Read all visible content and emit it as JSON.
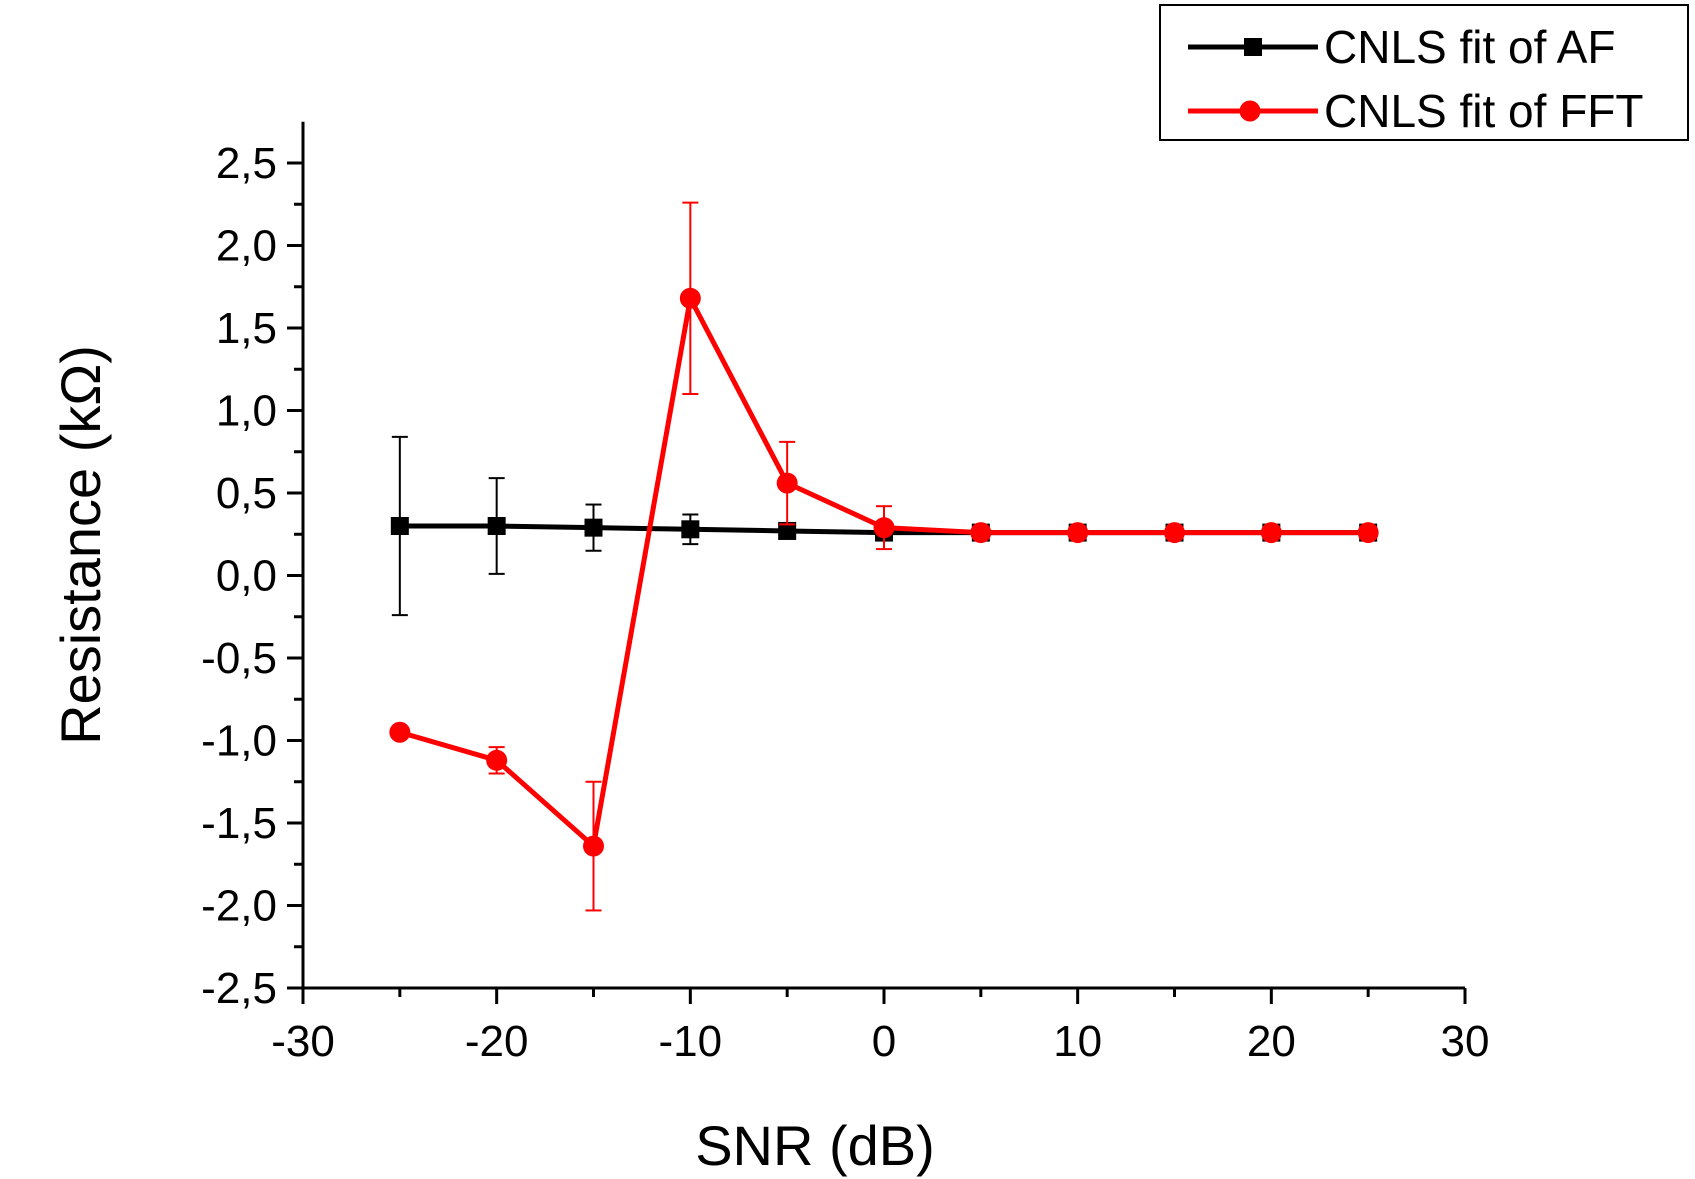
{
  "chart_data": {
    "type": "line",
    "xlabel": "SNR (dB)",
    "ylabel": "Resistance (kΩ)",
    "xlim": [
      -30,
      30
    ],
    "ylim": [
      -2.5,
      2.75
    ],
    "xticks": [
      -30,
      -20,
      -10,
      0,
      10,
      20,
      30
    ],
    "xtick_labels": [
      "-30",
      "-20",
      "-10",
      "0",
      "10",
      "20",
      "30"
    ],
    "xminor": [
      -25,
      -15,
      -5,
      5,
      15,
      25
    ],
    "yticks": [
      -2.5,
      -2.0,
      -1.5,
      -1.0,
      -0.5,
      0.0,
      0.5,
      1.0,
      1.5,
      2.0,
      2.5
    ],
    "ytick_labels": [
      "-2,5",
      "-2,0",
      "-1,5",
      "-1,0",
      "-0,5",
      "0,0",
      "0,5",
      "1,0",
      "1,5",
      "2,0",
      "2,5"
    ],
    "yminor": [
      -2.25,
      -1.75,
      -1.25,
      -0.75,
      -0.25,
      0.25,
      0.75,
      1.25,
      1.75,
      2.25
    ],
    "legend_position": "top-right",
    "series": [
      {
        "name": "CNLS fit of AF",
        "color": "#000000",
        "marker": "square",
        "x": [
          -25,
          -20,
          -15,
          -10,
          -5,
          0,
          5,
          10,
          15,
          20,
          25
        ],
        "y": [
          0.3,
          0.3,
          0.29,
          0.28,
          0.27,
          0.26,
          0.26,
          0.26,
          0.26,
          0.26,
          0.26
        ],
        "err": [
          0.54,
          0.29,
          0.14,
          0.09,
          0.02,
          0.02,
          0.01,
          0.01,
          0.01,
          0.01,
          0.01
        ]
      },
      {
        "name": "CNLS fit of FFT",
        "color": "#ff0000",
        "marker": "circle",
        "x": [
          -25,
          -20,
          -15,
          -10,
          -5,
          0,
          5,
          10,
          15,
          20,
          25
        ],
        "y": [
          -0.95,
          -1.12,
          -1.64,
          1.68,
          0.56,
          0.29,
          0.26,
          0.26,
          0.26,
          0.26,
          0.26
        ],
        "err": [
          0.0,
          0.08,
          0.39,
          0.58,
          0.25,
          0.13,
          0.01,
          0.01,
          0.01,
          0.01,
          0.01
        ]
      }
    ]
  }
}
